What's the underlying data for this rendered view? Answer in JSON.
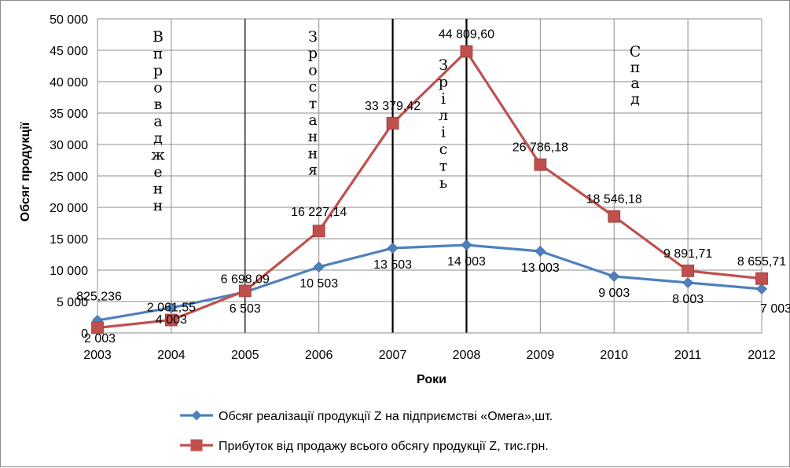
{
  "chart_data": {
    "type": "line",
    "xlabel": "Роки",
    "ylabel": "Обсяг продукції",
    "categories": [
      "2003",
      "2004",
      "2005",
      "2006",
      "2007",
      "2008",
      "2009",
      "2010",
      "2011",
      "2012"
    ],
    "ylim": [
      0,
      50000
    ],
    "yticks": [
      "0",
      "5 000",
      "10 000",
      "15 000",
      "20 000",
      "25 000",
      "30 000",
      "35 000",
      "40 000",
      "45 000",
      "50 000"
    ],
    "grid": true,
    "legend_position": "bottom",
    "series": [
      {
        "name": "Обсяг реалізації продукції Z на підприємстві «Омега»,шт.",
        "color": "#4f81bd",
        "marker": "diamond",
        "values": [
          2003,
          4003,
          6503,
          10503,
          13503,
          14003,
          13003,
          9003,
          8003,
          7003
        ],
        "labels": [
          "2 003",
          "4 003",
          "6 503",
          "10 503",
          "13 503",
          "14 003",
          "13 003",
          "9 003",
          "8 003",
          "7 003"
        ]
      },
      {
        "name": "Прибуток від продажу всього обсягу продукції Z, тис.грн.",
        "color": "#c0504d",
        "marker": "square",
        "values": [
          825.236,
          2061.55,
          6698.09,
          16227.14,
          33379.42,
          44809.6,
          26786.18,
          18546.18,
          9891.71,
          8655.71
        ],
        "labels": [
          "825,236",
          "2 061,55",
          "6 698,09",
          "16 227,14",
          "33 379,42",
          "44 809,60",
          "26 786,18",
          "18 546,18",
          "9 891,71",
          "8 655,71"
        ]
      }
    ],
    "stage_dividers": [
      "2005",
      "2007",
      "2008"
    ],
    "stages": [
      {
        "text": "Впровадженн"
      },
      {
        "text": "Зростання"
      },
      {
        "text": "Зрілість"
      },
      {
        "text": "Спад"
      }
    ]
  }
}
